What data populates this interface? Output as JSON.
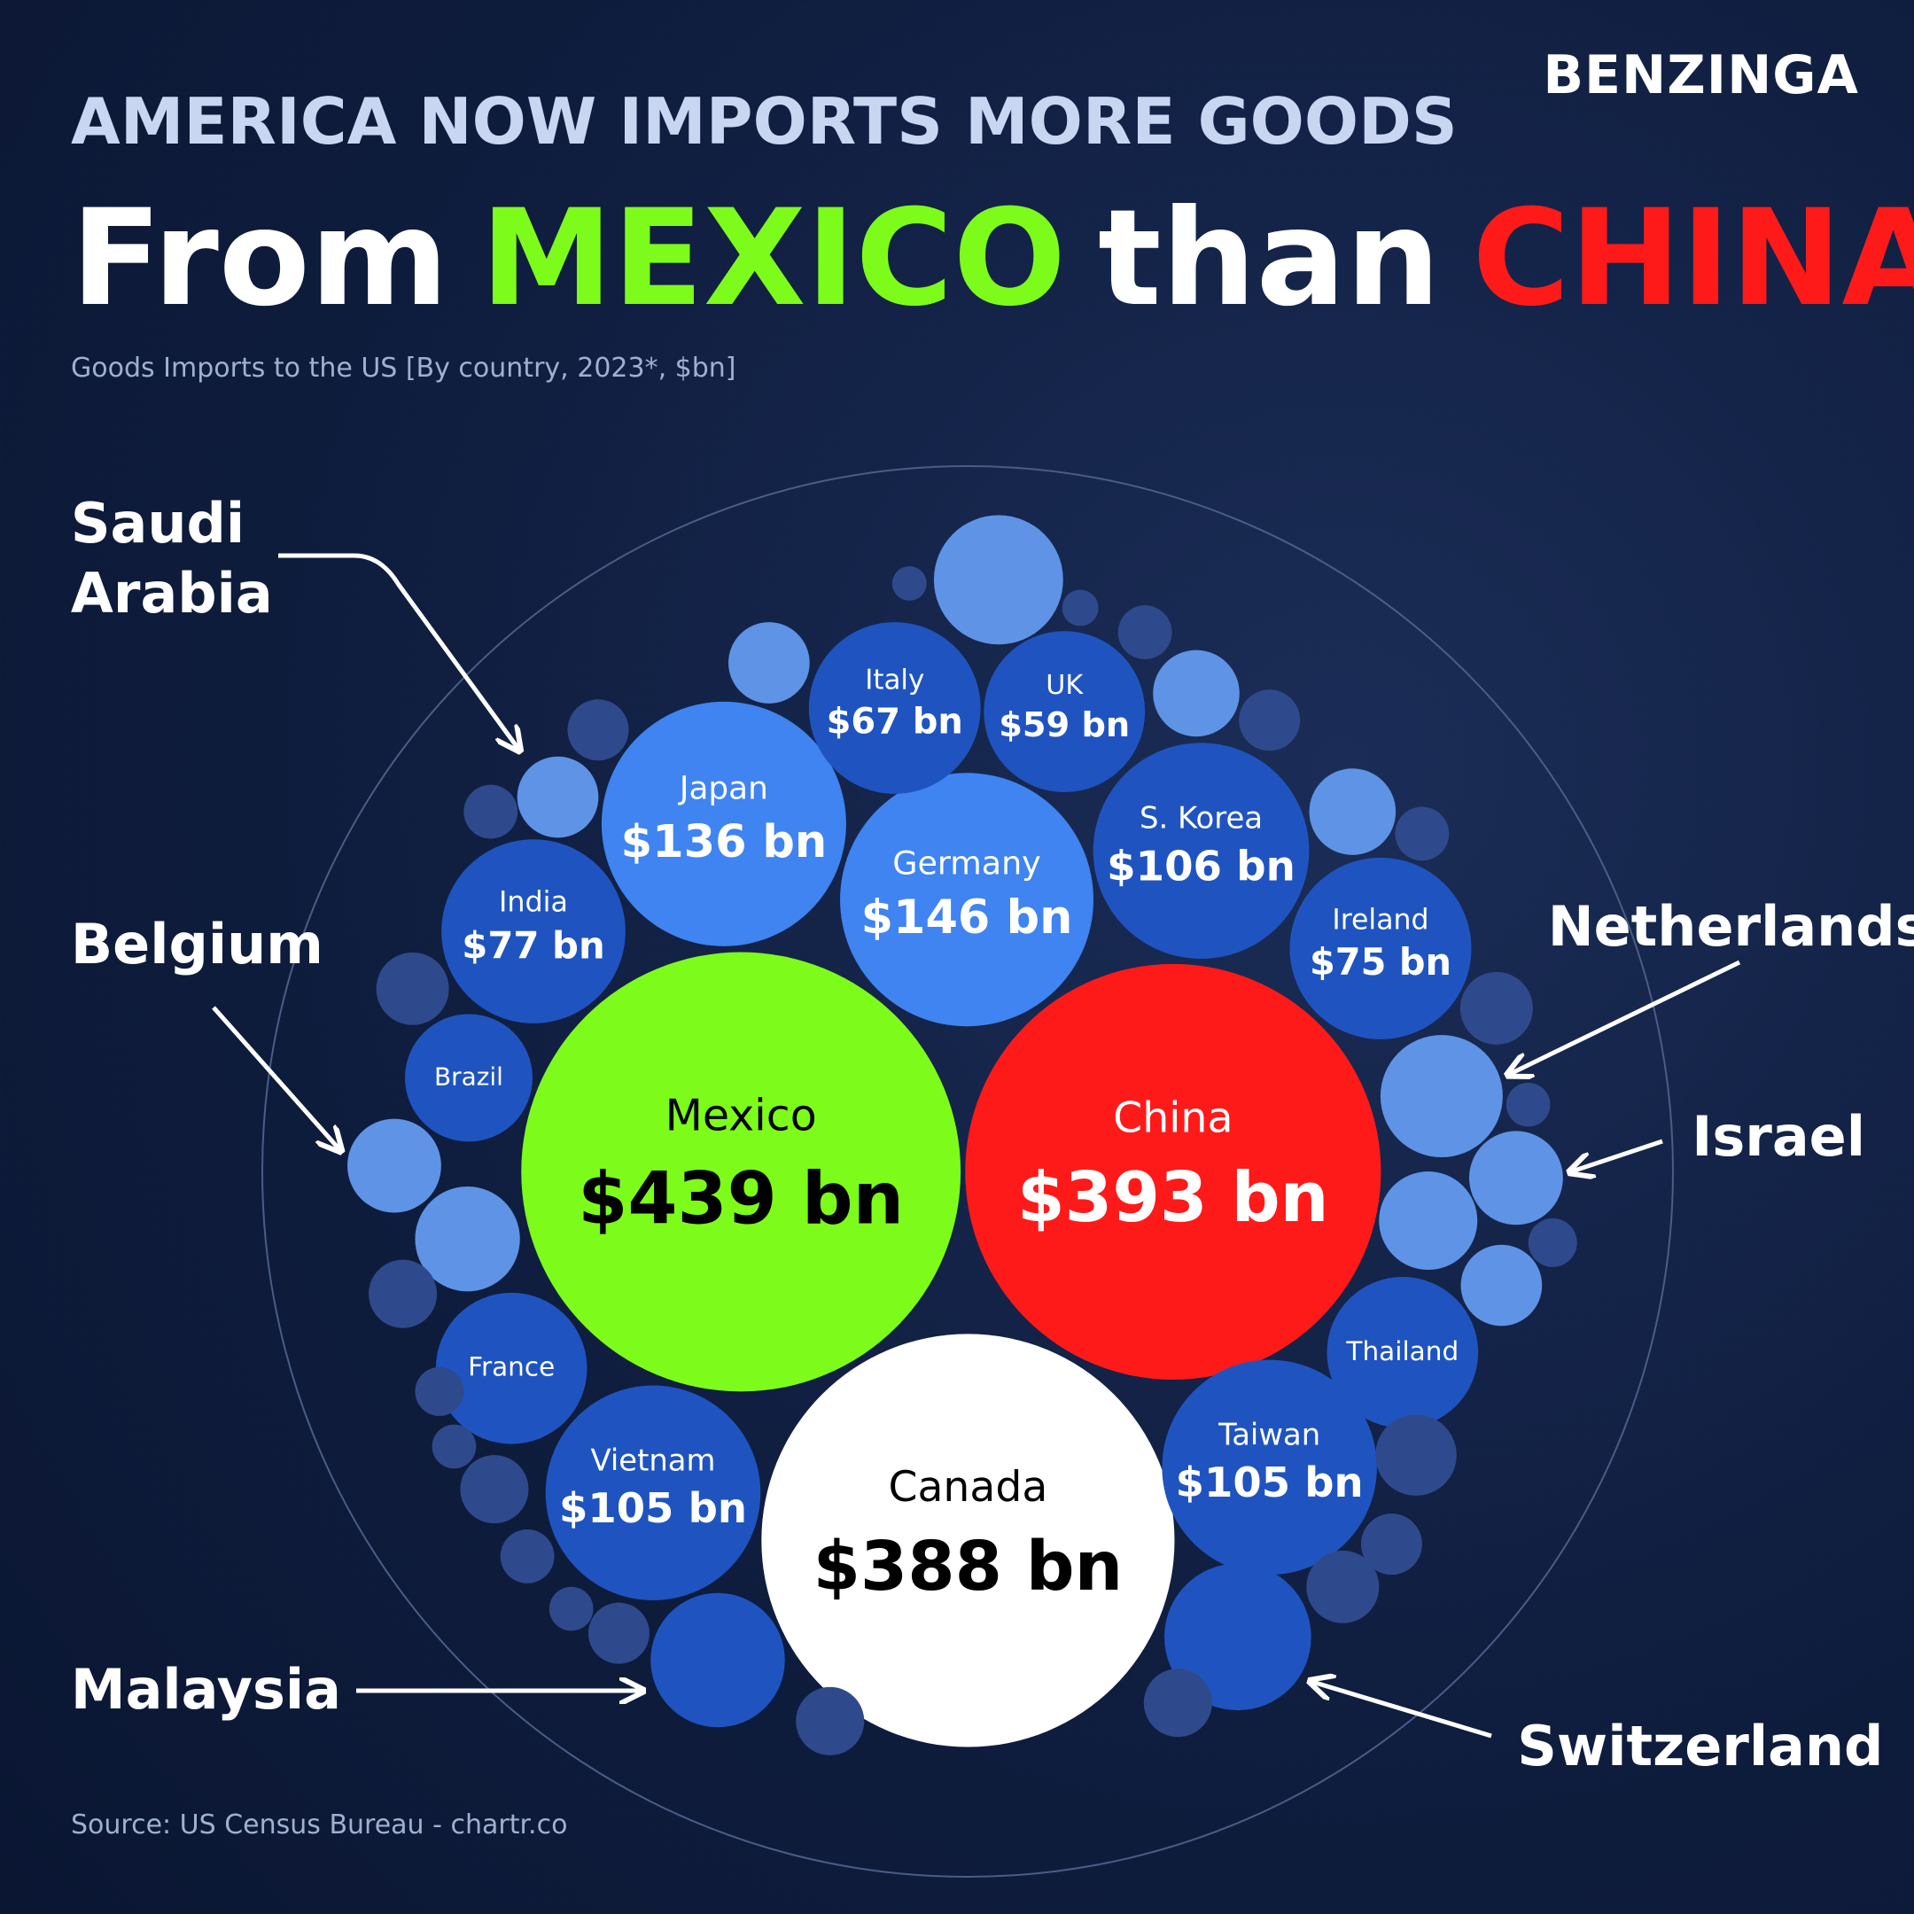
{
  "brand": "BENZINGA",
  "kicker": "AMERICA NOW IMPORTS MORE GOODS",
  "headline": [
    {
      "text": "From",
      "color": "#ffffff"
    },
    {
      "text": "MEXICO",
      "color": "#7dfc1c"
    },
    {
      "text": "than",
      "color": "#ffffff"
    },
    {
      "text": "CHINA",
      "color": "#ff1a1a"
    }
  ],
  "subtitle": "Goods Imports to the US [By country, 2023*, $bn]",
  "source": "Source: US Census Bureau - chartr.co",
  "chart_data": {
    "type": "bubble",
    "categories": [
      "Mexico",
      "China",
      "Canada",
      "Germany",
      "Japan",
      "S. Korea",
      "Vietnam",
      "Taiwan",
      "Italy",
      "UK",
      "India",
      "Ireland",
      "Brazil",
      "France",
      "Thailand",
      "Switzerland",
      "Malaysia",
      "Netherlands",
      "Israel",
      "Belgium",
      "Saudi Arabia",
      null,
      null,
      null,
      null,
      null,
      null,
      null,
      null,
      null,
      null,
      null,
      null,
      null,
      null,
      null,
      null,
      null,
      null,
      null,
      null,
      null,
      null,
      null,
      null,
      null,
      null,
      null,
      null,
      null,
      null
    ],
    "values": [
      439,
      393,
      388,
      146,
      136,
      106,
      105,
      105,
      67,
      59,
      77,
      75,
      37,
      52,
      52,
      49,
      41,
      34,
      20,
      20,
      15,
      38,
      15,
      8.5,
      17,
      8.5,
      17,
      6.6,
      12,
      22,
      15,
      15,
      8.5,
      12,
      10.6,
      10.6,
      10.6,
      6.6,
      12,
      6.6,
      25,
      10.6,
      4.4,
      8.5,
      5.4,
      4.4,
      6.6,
      3,
      2.7,
      5.4,
      4.4
    ],
    "value_labels": [
      "$439 bn",
      "$393 bn",
      "$388 bn",
      "$146 bn",
      "$136 bn",
      "$106 bn",
      "$105 bn",
      "$105 bn",
      "$67 bn",
      "$59 bn",
      "$77 bn",
      "$75 bn",
      null,
      null,
      null,
      null,
      null,
      null,
      null,
      null,
      null,
      null,
      null,
      null,
      null,
      null,
      null,
      null,
      null,
      null,
      null,
      null,
      null,
      null,
      null,
      null,
      null,
      null,
      null,
      null,
      null,
      null,
      null,
      null,
      null,
      null,
      null,
      null,
      null,
      null,
      null
    ],
    "colors": [
      "#7dfc1c",
      "#ff1a1a",
      "#ffffff",
      "#3f84f0",
      "#3f84f0",
      "#1f54c0",
      "#1f54c0",
      "#1f54c0",
      "#1f54c0",
      "#1f54c0",
      "#1f54c0",
      "#1f54c0",
      "#1f54c0",
      "#1f54c0",
      "#1f54c0",
      "#1f54c0",
      "#1f54c0",
      "#5f93e6",
      "#5f93e6",
      "#5f93e6",
      "#5f93e6",
      "#5f93e6",
      "#5f93e6",
      "#2e4a8c",
      "#5f93e6",
      "#2e4a8c",
      "#5f93e6",
      "#2e4a8c",
      "#2e4a8c",
      "#5f93e6",
      "#5f93e6",
      "#2e4a8c",
      "#2e4a8c",
      "#2e4a8c",
      "#2e4a8c",
      "#2e4a8c",
      "#2e4a8c",
      "#2e4a8c",
      "#2e4a8c",
      "#2e4a8c",
      "#5f93e6",
      "#2e4a8c",
      "#2e4a8c",
      "#2e4a8c",
      "#2e4a8c",
      "#2e4a8c",
      "#2e4a8c",
      "#2e4a8c",
      "#2e4a8c",
      "#2e4a8c",
      "#2e4a8c"
    ]
  }
}
